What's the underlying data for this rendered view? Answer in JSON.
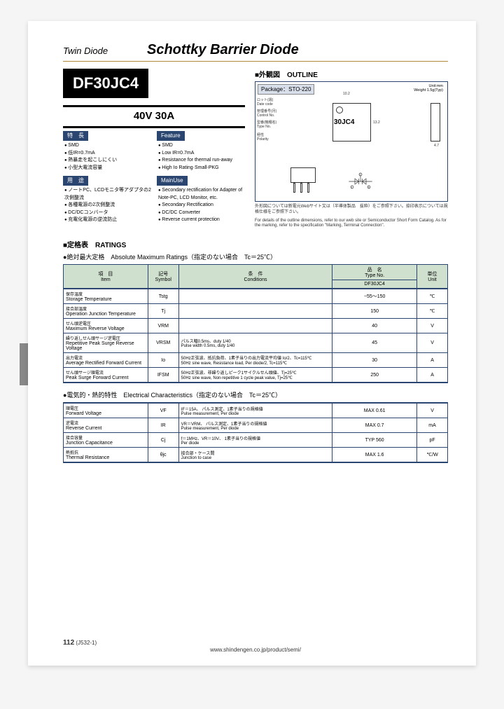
{
  "header": {
    "category": "Twin Diode",
    "title": "Schottky Barrier Diode"
  },
  "part": {
    "number": "DF30JC4",
    "spec": "40V 30A"
  },
  "features": {
    "jp_label": "特　長",
    "en_label": "Feature",
    "jp": [
      "SMD",
      "低IR=0.7mA",
      "熱暴走を起こしにくい",
      "小型大電流容量"
    ],
    "en": [
      "SMD",
      "Low IR=0.7mA",
      "Resistance for thermal run-away",
      "High Io Rating·Small-PKG"
    ]
  },
  "uses": {
    "jp_label": "用　途",
    "en_label": "MainUse",
    "jp": [
      "ノートPC、LCDモニタ等アダプタの2次側整流",
      "各種電源の2次側整流",
      "DC/DCコンバータ",
      "充電化電源の逆流防止"
    ],
    "en": [
      "Secondary rectification for Adapter of Note-PC, LCD Monitor, etc.",
      "Secondary Rectification",
      "DC/DC Converter",
      "Reverse current protection"
    ]
  },
  "outline": {
    "title": "■外観図　OUTLINE",
    "package": "Package：STO-220",
    "unit": "Unit:mm",
    "weight": "Weight 1.5g(Typ)",
    "chip_label": "30JC4",
    "callouts": {
      "date": "ロット(週)\nDate code",
      "control": "管理番号(月)\nControl No.",
      "type": "型番(機種名)\nType No.",
      "polarity": "極性\nPolarity"
    },
    "dim_w": "10.2",
    "dim_h": "13.2",
    "dim_t": "4.7",
    "note_jp": "外形図については新電元Webサイト又は（半導体製品　抜粋）をご参照下さい。捺印表示については規格仕様をご参照下さい。",
    "note_en": "For details of the outline dimensions, refer to our web site or Semiconductor Short Form Catalog. As for the marking, refer to the specification \"Marking, Terminal Connection\"."
  },
  "ratings_section": {
    "title": "■定格表　RATINGS",
    "abs_title": "●絶対最大定格　Absolute Maximum Ratings（指定のない場合　Tc＝25℃）",
    "elec_title": "●電気的・熱的特性　Electrical Characteristics（指定のない場合　Tc＝25℃）",
    "headers": {
      "item": "項　目\nItem",
      "symbol": "記号\nSymbol",
      "conditions": "条　件\nConditions",
      "typeno": "品　名\nType No.",
      "part": "DF30JC4",
      "unit": "単位\nUnit"
    }
  },
  "abs_rows": [
    {
      "item_jp": "保存温度",
      "item_en": "Storage Temperature",
      "sym": "Tstg",
      "cond": "",
      "val": "−55〜150",
      "unit": "℃"
    },
    {
      "item_jp": "接合部温度",
      "item_en": "Operation Junction Temperature",
      "sym": "Tj",
      "cond": "",
      "val": "150",
      "unit": "℃"
    },
    {
      "item_jp": "せん頭逆電圧",
      "item_en": "Maximum Reverse Voltage",
      "sym": "VRM",
      "cond": "",
      "val": "40",
      "unit": "V"
    },
    {
      "item_jp": "繰り返しせん頭サージ逆電圧",
      "item_en": "Repetitive Peak Surge Reverse Voltage",
      "sym": "VRSM",
      "cond": "パルス幅0.5ms、duty 1/40\nPulse width 0.5ms, duty 1/40",
      "val": "45",
      "unit": "V"
    },
    {
      "item_jp": "出力電流",
      "item_en": "Average Rectified Forward Current",
      "sym": "Io",
      "cond": "50Hz正弦波、抵抗負荷、1素子当りの出力電流平均値 Io/2、Tc=115℃\n50Hz sine wave, Resistance load, Per diode/2, Tc=115℃",
      "val": "30",
      "unit": "A"
    },
    {
      "item_jp": "せん頭サージ順電流",
      "item_en": "Peak Surge Forward Current",
      "sym": "IFSM",
      "cond": "50Hz正弦波、非繰り返しピーク1サイクルせん頭値、Tj=25℃\n50Hz sine wave, Non-repetitive 1 cycle peak value, Tj=25℃",
      "val": "250",
      "unit": "A"
    }
  ],
  "elec_rows": [
    {
      "item_jp": "順電圧",
      "item_en": "Forward Voltage",
      "sym": "VF",
      "cond": "IF＝15A、 パルス測定、1素子当りの規格値\nPulse measurement, Per diode",
      "val": "MAX 0.61",
      "unit": "V"
    },
    {
      "item_jp": "逆電流",
      "item_en": "Reverse Current",
      "sym": "IR",
      "cond": "VR＝VRM、 パルス測定、1素子当りの規格値\nPulse measurement, Per diode",
      "val": "MAX 0.7",
      "unit": "mA"
    },
    {
      "item_jp": "接合容量",
      "item_en": "Junction Capacitance",
      "sym": "Cj",
      "cond": "f＝1MHz、VR＝10V、 1素子当りの規格値\nPer diode",
      "val": "TYP 560",
      "unit": "pF"
    },
    {
      "item_jp": "熱抵抗",
      "item_en": "Thermal Resistance",
      "sym": "θjc",
      "cond": "接合部・ケース間\nJunction to case",
      "val": "MAX 1.6",
      "unit": "℃/W"
    }
  ],
  "footer": {
    "page": "112",
    "code": "(J532-1)",
    "url": "www.shindengen.co.jp/product/semi/"
  }
}
